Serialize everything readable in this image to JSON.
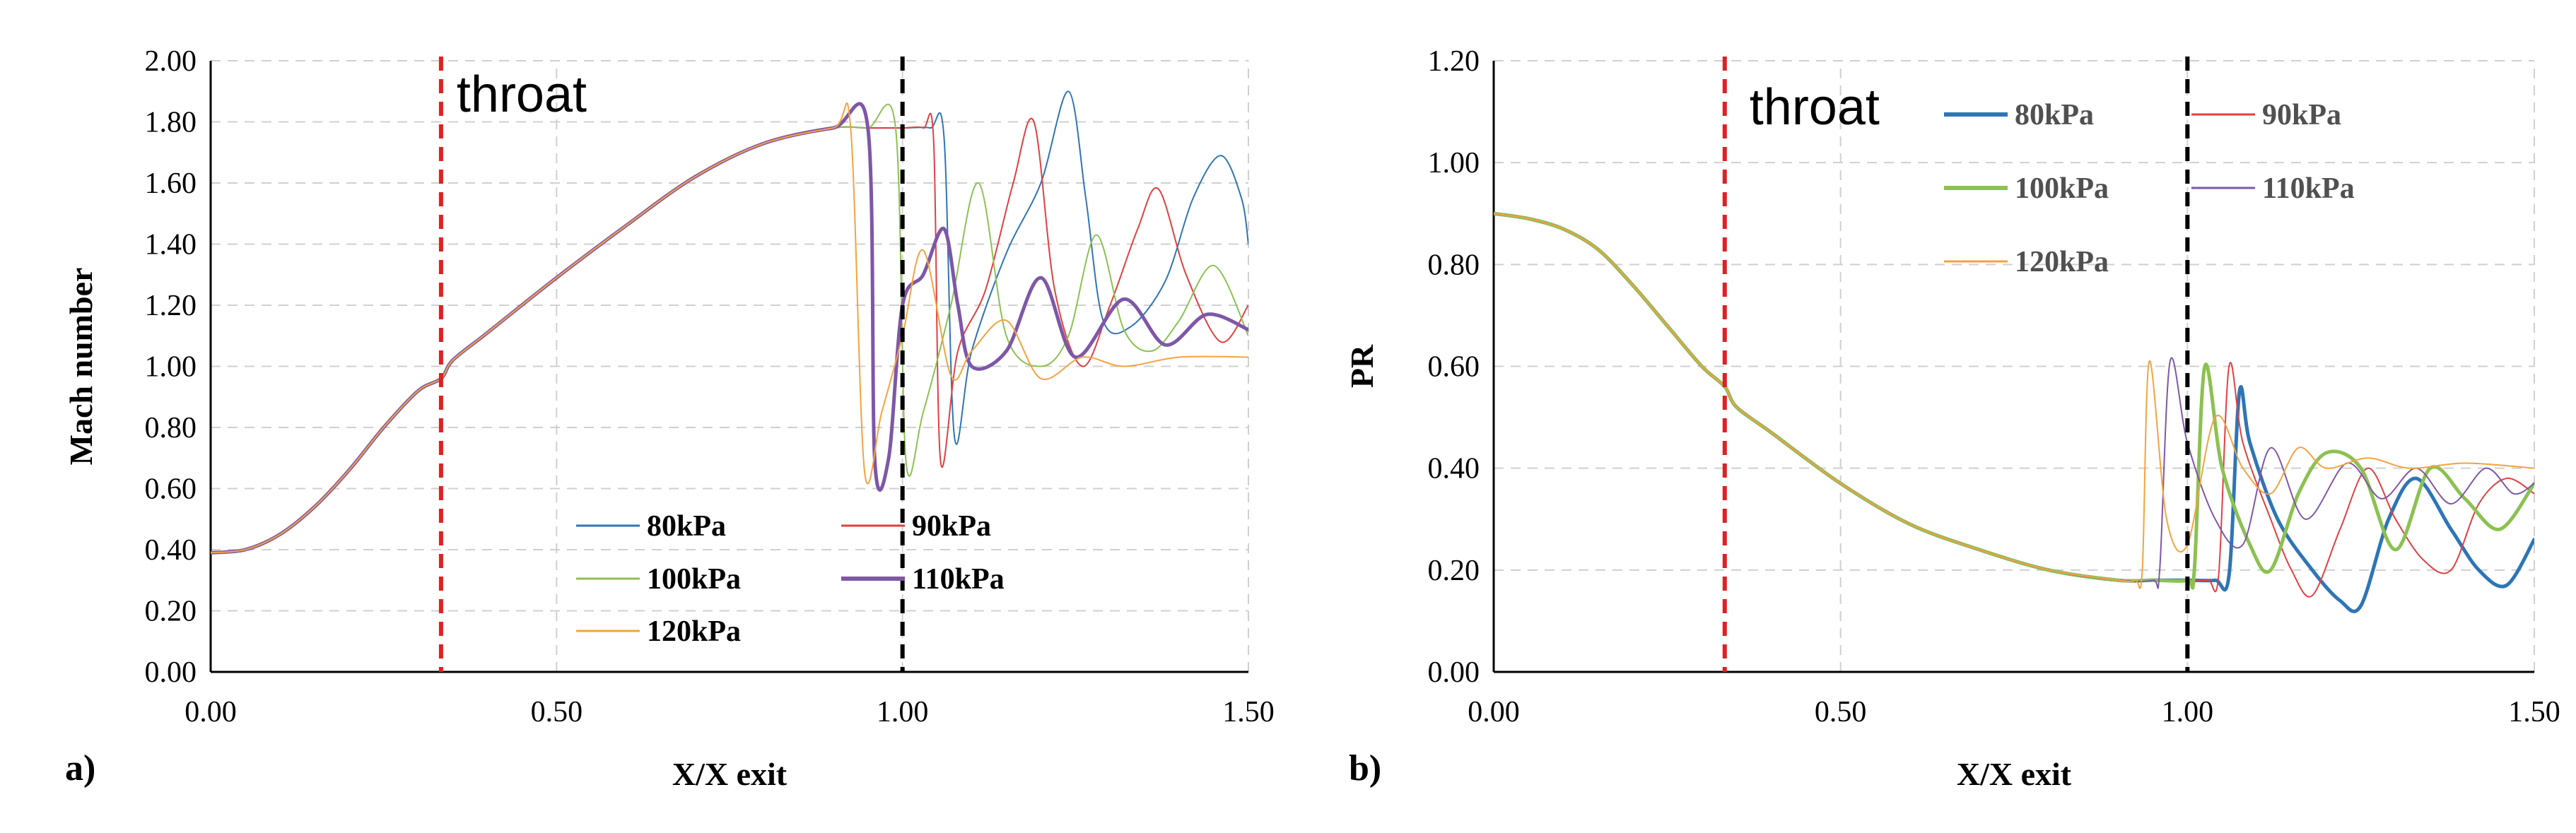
{
  "chart_data": [
    {
      "panel": "a)",
      "type": "line",
      "xlabel": "X/X exit",
      "ylabel": "Mach number",
      "xlim": [
        0,
        1.5
      ],
      "ylim": [
        0,
        2.0
      ],
      "xticks": [
        "0.00",
        "0.50",
        "1.00",
        "1.50"
      ],
      "yticks": [
        "0.00",
        "0.20",
        "0.40",
        "0.60",
        "0.80",
        "1.00",
        "1.20",
        "1.40",
        "1.60",
        "1.80",
        "2.00"
      ],
      "grid": true,
      "legend_position": "bottom-center",
      "annotations": [
        {
          "text": "throat",
          "x": 0.333,
          "color": "#e02020",
          "style": "dashed"
        },
        {
          "text": "",
          "x": 1.0,
          "color": "#000000",
          "style": "dashed"
        }
      ],
      "series": [
        {
          "name": "80kPa",
          "color": "#2e75b6",
          "width": 2,
          "x": [
            0,
            0.05,
            0.1,
            0.15,
            0.2,
            0.25,
            0.3,
            0.333,
            0.35,
            0.4,
            0.5,
            0.6,
            0.7,
            0.8,
            0.9,
            0.95,
            1.0,
            1.04,
            1.06,
            1.075,
            1.1,
            1.15,
            1.2,
            1.24,
            1.265,
            1.29,
            1.33,
            1.38,
            1.42,
            1.46,
            1.49,
            1.5
          ],
          "values": [
            0.39,
            0.4,
            0.45,
            0.54,
            0.66,
            0.8,
            0.92,
            0.96,
            1.02,
            1.11,
            1.29,
            1.46,
            1.62,
            1.73,
            1.78,
            1.78,
            1.78,
            1.78,
            1.75,
            0.77,
            1.05,
            1.37,
            1.6,
            1.9,
            1.55,
            1.15,
            1.13,
            1.28,
            1.55,
            1.69,
            1.55,
            1.4
          ]
        },
        {
          "name": "90kPa",
          "color": "#e04040",
          "width": 2,
          "x": [
            0,
            0.05,
            0.1,
            0.15,
            0.2,
            0.25,
            0.3,
            0.333,
            0.35,
            0.4,
            0.5,
            0.6,
            0.7,
            0.8,
            0.9,
            0.95,
            1.0,
            1.03,
            1.045,
            1.055,
            1.08,
            1.12,
            1.16,
            1.19,
            1.22,
            1.26,
            1.3,
            1.34,
            1.37,
            1.41,
            1.46,
            1.5
          ],
          "values": [
            0.39,
            0.4,
            0.45,
            0.54,
            0.66,
            0.8,
            0.92,
            0.96,
            1.02,
            1.11,
            1.29,
            1.46,
            1.62,
            1.73,
            1.78,
            1.78,
            1.78,
            1.78,
            1.74,
            0.69,
            1.05,
            1.25,
            1.6,
            1.8,
            1.25,
            1.0,
            1.2,
            1.45,
            1.58,
            1.3,
            1.08,
            1.2
          ]
        },
        {
          "name": "100kPa",
          "color": "#8cc152",
          "width": 2,
          "x": [
            0,
            0.05,
            0.1,
            0.15,
            0.2,
            0.25,
            0.3,
            0.333,
            0.35,
            0.4,
            0.5,
            0.6,
            0.7,
            0.8,
            0.9,
            0.95,
            0.99,
            1.005,
            1.03,
            1.07,
            1.11,
            1.15,
            1.2,
            1.24,
            1.28,
            1.32,
            1.36,
            1.4,
            1.45,
            1.5
          ],
          "values": [
            0.39,
            0.4,
            0.45,
            0.54,
            0.66,
            0.8,
            0.92,
            0.96,
            1.02,
            1.11,
            1.29,
            1.46,
            1.62,
            1.73,
            1.78,
            1.78,
            1.78,
            0.69,
            0.85,
            1.2,
            1.6,
            1.1,
            1.0,
            1.1,
            1.43,
            1.12,
            1.05,
            1.15,
            1.33,
            1.1
          ]
        },
        {
          "name": "110kPa",
          "color": "#7e57a8",
          "width": 5,
          "x": [
            0,
            0.05,
            0.1,
            0.15,
            0.2,
            0.25,
            0.3,
            0.333,
            0.35,
            0.4,
            0.5,
            0.6,
            0.7,
            0.8,
            0.9,
            0.95,
            0.96,
            0.98,
            1.0,
            1.03,
            1.06,
            1.08,
            1.1,
            1.15,
            1.2,
            1.25,
            1.32,
            1.38,
            1.44,
            1.5
          ],
          "values": [
            0.39,
            0.4,
            0.45,
            0.54,
            0.66,
            0.8,
            0.92,
            0.96,
            1.02,
            1.11,
            1.29,
            1.46,
            1.62,
            1.73,
            1.78,
            1.78,
            0.69,
            0.7,
            1.2,
            1.3,
            1.45,
            1.2,
            1.0,
            1.05,
            1.29,
            1.03,
            1.22,
            1.07,
            1.17,
            1.12
          ]
        },
        {
          "name": "120kPa",
          "color": "#f4a340",
          "width": 2,
          "x": [
            0,
            0.05,
            0.1,
            0.15,
            0.2,
            0.25,
            0.3,
            0.333,
            0.35,
            0.4,
            0.5,
            0.6,
            0.7,
            0.8,
            0.9,
            0.925,
            0.945,
            0.97,
            1.0,
            1.03,
            1.07,
            1.1,
            1.15,
            1.2,
            1.26,
            1.32,
            1.4,
            1.5
          ],
          "values": [
            0.39,
            0.4,
            0.45,
            0.54,
            0.66,
            0.8,
            0.92,
            0.96,
            1.02,
            1.11,
            1.29,
            1.46,
            1.62,
            1.73,
            1.78,
            1.78,
            0.66,
            0.85,
            1.1,
            1.38,
            0.97,
            1.05,
            1.15,
            0.96,
            1.03,
            1.0,
            1.03,
            1.03
          ]
        }
      ]
    },
    {
      "panel": "b)",
      "type": "line",
      "xlabel": "X/X exit",
      "ylabel": "PR",
      "xlim": [
        0,
        1.5
      ],
      "ylim": [
        0,
        1.2
      ],
      "xticks": [
        "0.00",
        "0.50",
        "1.00",
        "1.50"
      ],
      "yticks": [
        "0.00",
        "0.20",
        "0.40",
        "0.60",
        "0.80",
        "1.00",
        "1.20"
      ],
      "grid": true,
      "legend_position": "top-right",
      "annotations": [
        {
          "text": "throat",
          "x": 0.333,
          "color": "#e02020",
          "style": "dashed"
        },
        {
          "text": "",
          "x": 1.0,
          "color": "#000000",
          "style": "dashed"
        }
      ],
      "series": [
        {
          "name": "80kPa",
          "color": "#2e75b6",
          "width": 5,
          "x": [
            0,
            0.05,
            0.1,
            0.15,
            0.2,
            0.25,
            0.3,
            0.333,
            0.35,
            0.4,
            0.5,
            0.6,
            0.7,
            0.8,
            0.9,
            0.95,
            1.0,
            1.04,
            1.06,
            1.075,
            1.09,
            1.13,
            1.18,
            1.22,
            1.25,
            1.29,
            1.33,
            1.38,
            1.42,
            1.46,
            1.5
          ],
          "values": [
            0.9,
            0.89,
            0.87,
            0.83,
            0.76,
            0.68,
            0.6,
            0.56,
            0.52,
            0.47,
            0.37,
            0.29,
            0.24,
            0.2,
            0.18,
            0.18,
            0.18,
            0.18,
            0.19,
            0.55,
            0.45,
            0.3,
            0.2,
            0.14,
            0.13,
            0.3,
            0.38,
            0.28,
            0.2,
            0.17,
            0.26
          ]
        },
        {
          "name": "90kPa",
          "color": "#e04040",
          "width": 2,
          "x": [
            0,
            0.05,
            0.1,
            0.15,
            0.2,
            0.25,
            0.3,
            0.333,
            0.35,
            0.4,
            0.5,
            0.6,
            0.7,
            0.8,
            0.9,
            0.95,
            1.0,
            1.03,
            1.045,
            1.06,
            1.08,
            1.12,
            1.15,
            1.18,
            1.22,
            1.26,
            1.3,
            1.34,
            1.38,
            1.42,
            1.46,
            1.5
          ],
          "values": [
            0.9,
            0.89,
            0.87,
            0.83,
            0.76,
            0.68,
            0.6,
            0.56,
            0.52,
            0.47,
            0.37,
            0.29,
            0.24,
            0.2,
            0.18,
            0.18,
            0.18,
            0.18,
            0.19,
            0.6,
            0.45,
            0.3,
            0.2,
            0.15,
            0.28,
            0.4,
            0.3,
            0.22,
            0.2,
            0.33,
            0.38,
            0.35
          ]
        },
        {
          "name": "100kPa",
          "color": "#8cc152",
          "width": 5,
          "x": [
            0,
            0.05,
            0.1,
            0.15,
            0.2,
            0.25,
            0.3,
            0.333,
            0.35,
            0.4,
            0.5,
            0.6,
            0.7,
            0.8,
            0.9,
            0.95,
            1.0,
            1.01,
            1.025,
            1.05,
            1.09,
            1.12,
            1.16,
            1.2,
            1.25,
            1.3,
            1.35,
            1.4,
            1.45,
            1.5
          ],
          "values": [
            0.9,
            0.89,
            0.87,
            0.83,
            0.76,
            0.68,
            0.6,
            0.56,
            0.52,
            0.47,
            0.37,
            0.29,
            0.24,
            0.2,
            0.18,
            0.18,
            0.18,
            0.2,
            0.6,
            0.4,
            0.25,
            0.2,
            0.35,
            0.43,
            0.4,
            0.24,
            0.4,
            0.34,
            0.28,
            0.37
          ]
        },
        {
          "name": "110kPa",
          "color": "#7e57a8",
          "width": 2,
          "x": [
            0,
            0.05,
            0.1,
            0.15,
            0.2,
            0.25,
            0.3,
            0.333,
            0.35,
            0.4,
            0.5,
            0.6,
            0.7,
            0.8,
            0.9,
            0.95,
            0.96,
            0.975,
            1.0,
            1.04,
            1.08,
            1.12,
            1.17,
            1.23,
            1.28,
            1.33,
            1.38,
            1.43,
            1.47,
            1.5
          ],
          "values": [
            0.9,
            0.89,
            0.87,
            0.83,
            0.76,
            0.68,
            0.6,
            0.56,
            0.52,
            0.47,
            0.37,
            0.29,
            0.24,
            0.2,
            0.18,
            0.18,
            0.2,
            0.61,
            0.45,
            0.3,
            0.25,
            0.44,
            0.3,
            0.41,
            0.34,
            0.4,
            0.33,
            0.4,
            0.35,
            0.37
          ]
        },
        {
          "name": "120kPa",
          "color": "#f4a340",
          "width": 2,
          "x": [
            0,
            0.05,
            0.1,
            0.15,
            0.2,
            0.25,
            0.3,
            0.333,
            0.35,
            0.4,
            0.5,
            0.6,
            0.7,
            0.8,
            0.9,
            0.925,
            0.935,
            0.945,
            0.97,
            1.0,
            1.04,
            1.08,
            1.12,
            1.16,
            1.2,
            1.26,
            1.32,
            1.4,
            1.5
          ],
          "values": [
            0.9,
            0.89,
            0.87,
            0.83,
            0.76,
            0.68,
            0.6,
            0.56,
            0.52,
            0.47,
            0.37,
            0.29,
            0.24,
            0.2,
            0.18,
            0.18,
            0.2,
            0.61,
            0.3,
            0.25,
            0.5,
            0.4,
            0.35,
            0.44,
            0.4,
            0.42,
            0.4,
            0.41,
            0.4
          ]
        }
      ]
    }
  ]
}
